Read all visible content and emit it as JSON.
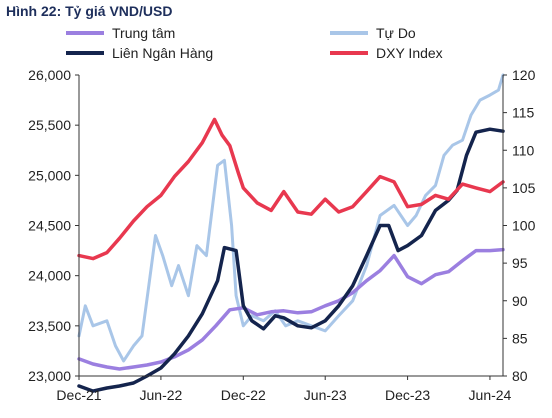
{
  "chart_data": {
    "type": "line",
    "title": "Hình 22: Tỷ giá VND/USD",
    "x_tick_labels": [
      "Dec-21",
      "Jun-22",
      "Dec-22",
      "Jun-23",
      "Dec-23",
      "Jun-24"
    ],
    "x_range": [
      "2021-12",
      "2024-06"
    ],
    "y_left": {
      "ylim": [
        23000,
        26000
      ],
      "ticks": [
        23000,
        23500,
        24000,
        24500,
        25000,
        25500,
        26000
      ],
      "tick_labels": [
        "23,000",
        "23,500",
        "24,000",
        "24,500",
        "25,000",
        "25,500",
        "26,000"
      ]
    },
    "y_right": {
      "ylim": [
        80,
        120
      ],
      "ticks": [
        80,
        85,
        90,
        95,
        100,
        105,
        110,
        115,
        120
      ],
      "tick_labels": [
        "80",
        "85",
        "90",
        "95",
        "100",
        "105",
        "110",
        "115",
        "120"
      ]
    },
    "grid": false,
    "legend": {
      "placement": "top",
      "columns": 2
    },
    "series": [
      {
        "name": "Trung tâm",
        "axis": "left",
        "color": "#9b7fe0",
        "points": [
          [
            "2021-12-01",
            23170
          ],
          [
            "2022-01-01",
            23120
          ],
          [
            "2022-02-01",
            23090
          ],
          [
            "2022-03-01",
            23070
          ],
          [
            "2022-04-01",
            23090
          ],
          [
            "2022-05-01",
            23110
          ],
          [
            "2022-06-01",
            23140
          ],
          [
            "2022-07-01",
            23190
          ],
          [
            "2022-08-01",
            23260
          ],
          [
            "2022-09-01",
            23360
          ],
          [
            "2022-10-01",
            23500
          ],
          [
            "2022-11-01",
            23660
          ],
          [
            "2022-12-01",
            23680
          ],
          [
            "2023-01-01",
            23610
          ],
          [
            "2023-02-01",
            23640
          ],
          [
            "2023-03-01",
            23650
          ],
          [
            "2023-04-01",
            23630
          ],
          [
            "2023-05-01",
            23640
          ],
          [
            "2023-06-01",
            23700
          ],
          [
            "2023-07-01",
            23750
          ],
          [
            "2023-08-01",
            23830
          ],
          [
            "2023-09-01",
            23950
          ],
          [
            "2023-10-01",
            24050
          ],
          [
            "2023-11-01",
            24200
          ],
          [
            "2023-12-01",
            23990
          ],
          [
            "2024-01-01",
            23920
          ],
          [
            "2024-02-01",
            24010
          ],
          [
            "2024-03-01",
            24040
          ],
          [
            "2024-04-01",
            24150
          ],
          [
            "2024-05-01",
            24250
          ],
          [
            "2024-06-01",
            24250
          ],
          [
            "2024-06-30",
            24260
          ]
        ]
      },
      {
        "name": "Tự Do",
        "axis": "left",
        "color": "#a9c6e8",
        "points": [
          [
            "2021-12-01",
            23400
          ],
          [
            "2021-12-15",
            23700
          ],
          [
            "2022-01-01",
            23500
          ],
          [
            "2022-02-01",
            23550
          ],
          [
            "2022-02-20",
            23300
          ],
          [
            "2022-03-10",
            23150
          ],
          [
            "2022-04-01",
            23300
          ],
          [
            "2022-04-20",
            23400
          ],
          [
            "2022-05-05",
            23900
          ],
          [
            "2022-05-20",
            24400
          ],
          [
            "2022-06-05",
            24200
          ],
          [
            "2022-06-25",
            23900
          ],
          [
            "2022-07-10",
            24100
          ],
          [
            "2022-08-01",
            23800
          ],
          [
            "2022-08-20",
            24300
          ],
          [
            "2022-09-10",
            24200
          ],
          [
            "2022-10-05",
            25100
          ],
          [
            "2022-10-20",
            25150
          ],
          [
            "2022-11-05",
            24500
          ],
          [
            "2022-11-15",
            23800
          ],
          [
            "2022-12-01",
            23500
          ],
          [
            "2022-12-20",
            23600
          ],
          [
            "2023-01-15",
            23550
          ],
          [
            "2023-02-10",
            23650
          ],
          [
            "2023-03-05",
            23500
          ],
          [
            "2023-04-01",
            23550
          ],
          [
            "2023-05-01",
            23500
          ],
          [
            "2023-06-01",
            23450
          ],
          [
            "2023-07-01",
            23600
          ],
          [
            "2023-08-01",
            23750
          ],
          [
            "2023-09-01",
            24100
          ],
          [
            "2023-10-01",
            24600
          ],
          [
            "2023-11-01",
            24700
          ],
          [
            "2023-12-01",
            24500
          ],
          [
            "2023-12-20",
            24600
          ],
          [
            "2024-01-10",
            24800
          ],
          [
            "2024-02-01",
            24900
          ],
          [
            "2024-02-20",
            25200
          ],
          [
            "2024-03-10",
            25300
          ],
          [
            "2024-04-01",
            25350
          ],
          [
            "2024-04-20",
            25600
          ],
          [
            "2024-05-10",
            25750
          ],
          [
            "2024-06-01",
            25800
          ],
          [
            "2024-06-20",
            25850
          ],
          [
            "2024-06-30",
            26000
          ]
        ]
      },
      {
        "name": "Liên Ngân Hàng",
        "axis": "left",
        "color": "#14244d",
        "points": [
          [
            "2021-12-01",
            22900
          ],
          [
            "2022-01-01",
            22850
          ],
          [
            "2022-02-01",
            22880
          ],
          [
            "2022-03-01",
            22900
          ],
          [
            "2022-04-01",
            22930
          ],
          [
            "2022-05-01",
            23000
          ],
          [
            "2022-06-01",
            23080
          ],
          [
            "2022-07-01",
            23220
          ],
          [
            "2022-08-01",
            23400
          ],
          [
            "2022-09-01",
            23620
          ],
          [
            "2022-10-05",
            23950
          ],
          [
            "2022-10-20",
            24280
          ],
          [
            "2022-11-15",
            24250
          ],
          [
            "2022-12-01",
            23700
          ],
          [
            "2022-12-20",
            23550
          ],
          [
            "2023-01-15",
            23470
          ],
          [
            "2023-02-10",
            23600
          ],
          [
            "2023-03-01",
            23580
          ],
          [
            "2023-04-01",
            23500
          ],
          [
            "2023-05-01",
            23480
          ],
          [
            "2023-06-01",
            23550
          ],
          [
            "2023-07-01",
            23700
          ],
          [
            "2023-08-01",
            23900
          ],
          [
            "2023-09-01",
            24200
          ],
          [
            "2023-10-01",
            24500
          ],
          [
            "2023-10-20",
            24500
          ],
          [
            "2023-11-10",
            24250
          ],
          [
            "2023-12-01",
            24300
          ],
          [
            "2024-01-01",
            24400
          ],
          [
            "2024-02-01",
            24650
          ],
          [
            "2024-03-01",
            24750
          ],
          [
            "2024-03-20",
            24850
          ],
          [
            "2024-04-10",
            25200
          ],
          [
            "2024-05-01",
            25430
          ],
          [
            "2024-06-01",
            25460
          ],
          [
            "2024-06-30",
            25440
          ]
        ]
      },
      {
        "name": "DXY Index",
        "axis": "right",
        "color": "#e8384f",
        "points": [
          [
            "2021-12-01",
            96.0
          ],
          [
            "2022-01-01",
            95.6
          ],
          [
            "2022-02-01",
            96.4
          ],
          [
            "2022-03-01",
            98.3
          ],
          [
            "2022-04-01",
            100.6
          ],
          [
            "2022-05-01",
            102.5
          ],
          [
            "2022-06-01",
            104.0
          ],
          [
            "2022-07-01",
            106.5
          ],
          [
            "2022-08-01",
            108.5
          ],
          [
            "2022-09-01",
            111.0
          ],
          [
            "2022-09-28",
            114.1
          ],
          [
            "2022-10-15",
            112.0
          ],
          [
            "2022-11-01",
            110.6
          ],
          [
            "2022-11-20",
            107.0
          ],
          [
            "2022-12-01",
            105.0
          ],
          [
            "2023-01-01",
            103.0
          ],
          [
            "2023-02-01",
            102.0
          ],
          [
            "2023-03-01",
            104.5
          ],
          [
            "2023-04-01",
            101.8
          ],
          [
            "2023-05-01",
            101.5
          ],
          [
            "2023-06-01",
            103.5
          ],
          [
            "2023-07-01",
            101.8
          ],
          [
            "2023-08-01",
            102.5
          ],
          [
            "2023-09-01",
            104.5
          ],
          [
            "2023-10-01",
            106.5
          ],
          [
            "2023-11-01",
            105.8
          ],
          [
            "2023-12-01",
            102.5
          ],
          [
            "2024-01-01",
            102.8
          ],
          [
            "2024-02-01",
            104.0
          ],
          [
            "2024-03-01",
            103.5
          ],
          [
            "2024-04-01",
            105.5
          ],
          [
            "2024-05-01",
            105.0
          ],
          [
            "2024-06-01",
            104.5
          ],
          [
            "2024-06-30",
            105.8
          ]
        ]
      }
    ]
  }
}
